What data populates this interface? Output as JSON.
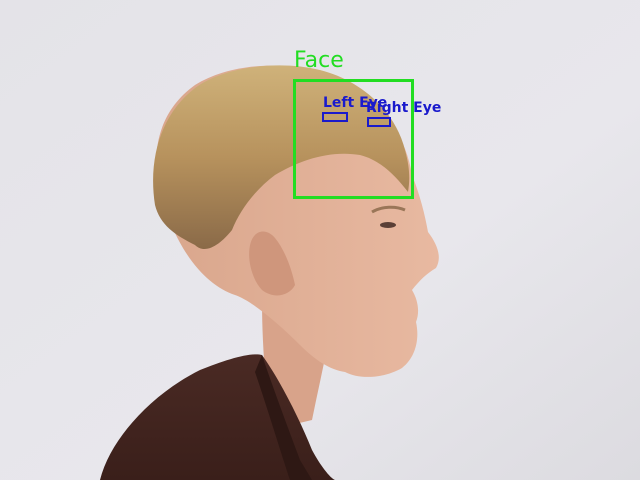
{
  "colors": {
    "face_box": "#22dd22",
    "eye_box": "#1a1acc"
  },
  "detections": {
    "face": {
      "label": "Face"
    },
    "left_eye": {
      "label": "Left Eye"
    },
    "right_eye": {
      "label": "Right Eye"
    }
  }
}
